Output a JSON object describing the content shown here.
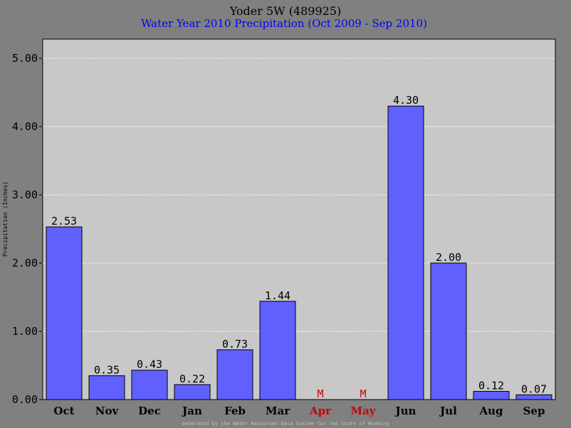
{
  "chart_data": {
    "type": "bar",
    "title": "Yoder 5W (489925)",
    "subtitle": "Water Year 2010 Precipitation (Oct 2009 - Sep 2010)",
    "ylabel": "Precipitation (Inches)",
    "xlabel": "",
    "footer": "Generated by the Water Resources Data System for the State of Wyoming",
    "ylim": [
      0,
      5.0
    ],
    "yticks": [
      "0.00",
      "1.00",
      "2.00",
      "3.00",
      "4.00",
      "5.00"
    ],
    "grid": true,
    "legend": "none",
    "categories": [
      "Oct",
      "Nov",
      "Dec",
      "Jan",
      "Feb",
      "Mar",
      "Apr",
      "May",
      "Jun",
      "Jul",
      "Aug",
      "Sep"
    ],
    "values": [
      2.53,
      0.35,
      0.43,
      0.22,
      0.73,
      1.44,
      null,
      null,
      4.3,
      2.0,
      0.12,
      0.07
    ],
    "value_labels": [
      "2.53",
      "0.35",
      "0.43",
      "0.22",
      "0.73",
      "1.44",
      "M",
      "M",
      "4.30",
      "2.00",
      "0.12",
      "0.07"
    ],
    "missing_categories": [
      "Apr",
      "May"
    ],
    "missing_label": "M",
    "colors": {
      "background": "#808080",
      "plot_area": "#c8c8c8",
      "bar_fill": "#6060ff",
      "bar_stroke": "#000000",
      "title": "#000000",
      "subtitle": "#0000ff",
      "missing": "#cc0000",
      "footer": "#c0c0c0"
    }
  }
}
